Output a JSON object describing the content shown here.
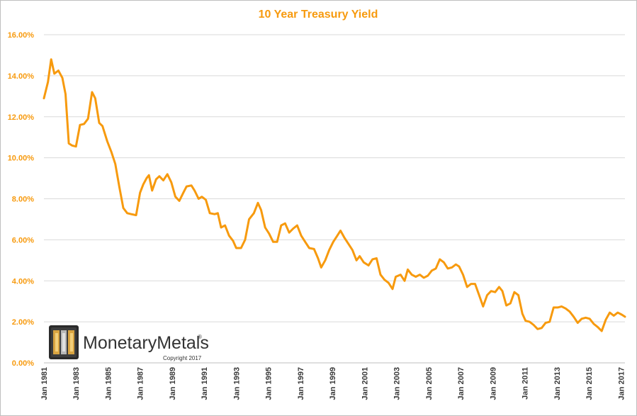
{
  "chart_data": {
    "type": "line",
    "title": "10 Year Treasury Yield",
    "ylim": [
      0,
      16
    ],
    "y_ticks": [
      "0.00%",
      "2.00%",
      "4.00%",
      "6.00%",
      "8.00%",
      "10.00%",
      "12.00%",
      "14.00%",
      "16.00%"
    ],
    "x_ticks": [
      "Jan 1981",
      "Jan 1983",
      "Jan 1985",
      "Jan 1987",
      "Jan 1989",
      "Jan 1991",
      "Jan 1993",
      "Jan 1995",
      "Jan 1997",
      "Jan 1999",
      "Jan 2001",
      "Jan 2003",
      "Jan 2005",
      "Jan 2007",
      "Jan 2009",
      "Jan 2011",
      "Jan 2013",
      "Jan 2015",
      "Jan 2017"
    ],
    "xlim": [
      1981.0,
      2017.25
    ],
    "grid": true,
    "legend": "none",
    "series": [
      {
        "color": "#f79a0e",
        "points": [
          [
            1981.0,
            12.9
          ],
          [
            1981.25,
            13.7
          ],
          [
            1981.45,
            14.8
          ],
          [
            1981.65,
            14.1
          ],
          [
            1981.9,
            14.25
          ],
          [
            1982.15,
            13.9
          ],
          [
            1982.35,
            13.1
          ],
          [
            1982.55,
            10.7
          ],
          [
            1982.75,
            10.6
          ],
          [
            1983.0,
            10.55
          ],
          [
            1983.25,
            11.6
          ],
          [
            1983.5,
            11.65
          ],
          [
            1983.75,
            11.9
          ],
          [
            1984.0,
            13.2
          ],
          [
            1984.2,
            12.9
          ],
          [
            1984.45,
            11.7
          ],
          [
            1984.65,
            11.55
          ],
          [
            1984.95,
            10.8
          ],
          [
            1985.2,
            10.3
          ],
          [
            1985.45,
            9.7
          ],
          [
            1985.7,
            8.6
          ],
          [
            1985.95,
            7.55
          ],
          [
            1986.2,
            7.3
          ],
          [
            1986.45,
            7.25
          ],
          [
            1986.75,
            7.2
          ],
          [
            1987.0,
            8.3
          ],
          [
            1987.2,
            8.7
          ],
          [
            1987.4,
            9.0
          ],
          [
            1987.55,
            9.15
          ],
          [
            1987.75,
            8.4
          ],
          [
            1988.0,
            8.95
          ],
          [
            1988.2,
            9.1
          ],
          [
            1988.45,
            8.9
          ],
          [
            1988.7,
            9.2
          ],
          [
            1988.95,
            8.8
          ],
          [
            1989.2,
            8.1
          ],
          [
            1989.45,
            7.9
          ],
          [
            1989.7,
            8.3
          ],
          [
            1989.9,
            8.6
          ],
          [
            1990.2,
            8.65
          ],
          [
            1990.4,
            8.4
          ],
          [
            1990.65,
            8.0
          ],
          [
            1990.85,
            8.1
          ],
          [
            1991.1,
            7.95
          ],
          [
            1991.35,
            7.3
          ],
          [
            1991.65,
            7.25
          ],
          [
            1991.85,
            7.3
          ],
          [
            1992.05,
            6.6
          ],
          [
            1992.3,
            6.7
          ],
          [
            1992.55,
            6.2
          ],
          [
            1992.8,
            5.95
          ],
          [
            1993.0,
            5.6
          ],
          [
            1993.3,
            5.6
          ],
          [
            1993.55,
            6.0
          ],
          [
            1993.8,
            7.0
          ],
          [
            1994.1,
            7.3
          ],
          [
            1994.35,
            7.8
          ],
          [
            1994.55,
            7.45
          ],
          [
            1994.8,
            6.6
          ],
          [
            1995.05,
            6.3
          ],
          [
            1995.3,
            5.9
          ],
          [
            1995.55,
            5.9
          ],
          [
            1995.8,
            6.7
          ],
          [
            1996.05,
            6.8
          ],
          [
            1996.3,
            6.35
          ],
          [
            1996.55,
            6.55
          ],
          [
            1996.8,
            6.7
          ],
          [
            1997.05,
            6.2
          ],
          [
            1997.3,
            5.9
          ],
          [
            1997.55,
            5.6
          ],
          [
            1997.85,
            5.55
          ],
          [
            1998.1,
            5.1
          ],
          [
            1998.3,
            4.65
          ],
          [
            1998.55,
            5.0
          ],
          [
            1998.8,
            5.5
          ],
          [
            1999.05,
            5.9
          ],
          [
            1999.3,
            6.2
          ],
          [
            1999.5,
            6.45
          ],
          [
            1999.75,
            6.1
          ],
          [
            2000.0,
            5.8
          ],
          [
            2000.25,
            5.5
          ],
          [
            2000.5,
            5.0
          ],
          [
            2000.7,
            5.2
          ],
          [
            2000.95,
            4.9
          ],
          [
            2001.25,
            4.75
          ],
          [
            2001.5,
            5.05
          ],
          [
            2001.75,
            5.1
          ],
          [
            2002.0,
            4.3
          ],
          [
            2002.25,
            4.05
          ],
          [
            2002.5,
            3.9
          ],
          [
            2002.75,
            3.6
          ],
          [
            2002.95,
            4.2
          ],
          [
            2003.25,
            4.3
          ],
          [
            2003.5,
            4.0
          ],
          [
            2003.7,
            4.55
          ],
          [
            2003.95,
            4.3
          ],
          [
            2004.2,
            4.2
          ],
          [
            2004.45,
            4.3
          ],
          [
            2004.7,
            4.15
          ],
          [
            2004.95,
            4.25
          ],
          [
            2005.2,
            4.5
          ],
          [
            2005.45,
            4.6
          ],
          [
            2005.7,
            5.05
          ],
          [
            2005.95,
            4.9
          ],
          [
            2006.2,
            4.6
          ],
          [
            2006.45,
            4.65
          ],
          [
            2006.7,
            4.8
          ],
          [
            2006.9,
            4.7
          ],
          [
            2007.15,
            4.3
          ],
          [
            2007.4,
            3.7
          ],
          [
            2007.65,
            3.85
          ],
          [
            2007.9,
            3.85
          ],
          [
            2008.15,
            3.3
          ],
          [
            2008.4,
            2.75
          ],
          [
            2008.65,
            3.3
          ],
          [
            2008.9,
            3.5
          ],
          [
            2009.15,
            3.45
          ],
          [
            2009.4,
            3.7
          ],
          [
            2009.6,
            3.5
          ],
          [
            2009.85,
            2.8
          ],
          [
            2010.1,
            2.9
          ],
          [
            2010.35,
            3.45
          ],
          [
            2010.6,
            3.3
          ],
          [
            2010.85,
            2.4
          ],
          [
            2011.05,
            2.05
          ],
          [
            2011.3,
            2.0
          ],
          [
            2011.55,
            1.85
          ],
          [
            2011.8,
            1.65
          ],
          [
            2012.05,
            1.7
          ],
          [
            2012.3,
            1.95
          ],
          [
            2012.55,
            2.0
          ],
          [
            2012.8,
            2.7
          ],
          [
            2013.05,
            2.7
          ],
          [
            2013.3,
            2.75
          ],
          [
            2013.55,
            2.65
          ],
          [
            2013.8,
            2.5
          ],
          [
            2014.05,
            2.25
          ],
          [
            2014.3,
            1.95
          ],
          [
            2014.55,
            2.15
          ],
          [
            2014.8,
            2.2
          ],
          [
            2015.05,
            2.15
          ],
          [
            2015.3,
            1.9
          ],
          [
            2015.55,
            1.75
          ],
          [
            2015.8,
            1.55
          ],
          [
            2016.05,
            2.1
          ],
          [
            2016.3,
            2.45
          ],
          [
            2016.55,
            2.3
          ],
          [
            2016.8,
            2.45
          ],
          [
            2017.05,
            2.35
          ],
          [
            2017.25,
            2.25
          ]
        ]
      }
    ],
    "title_color": "#f79a0e",
    "ytick_color": "#f79a0e",
    "grid_color": "#d9d9d9"
  },
  "logo": {
    "name": "MonetaryMetals",
    "registered": "®",
    "copyright": "Copyright 2017"
  }
}
